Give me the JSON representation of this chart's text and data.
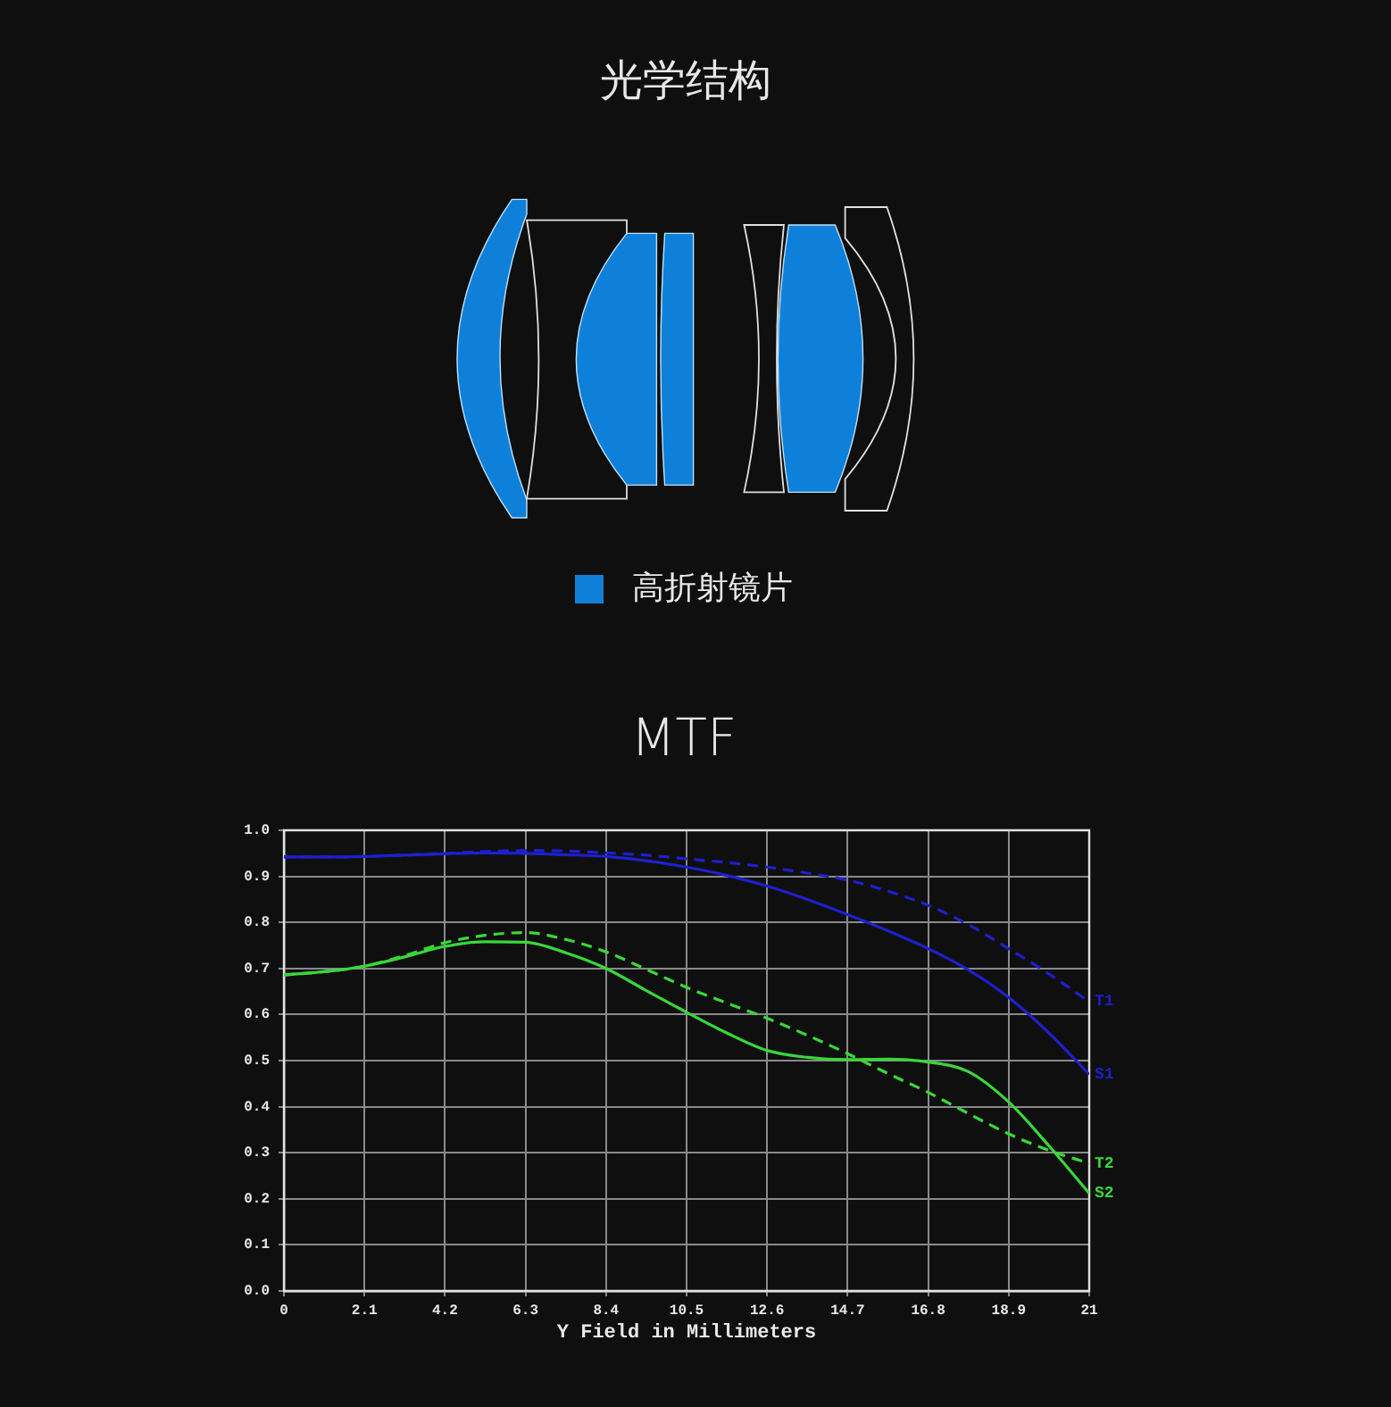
{
  "chart_data": [
    {
      "type": "other",
      "title": "光学结构",
      "annotations": [
        "高折射镜片"
      ]
    },
    {
      "type": "line",
      "title": "MTF",
      "xlabel": "Y Field in Millimeters",
      "x": [
        0,
        1.05,
        2.1,
        3.15,
        4.2,
        5.25,
        6.3,
        7.35,
        8.4,
        9.45,
        10.5,
        11.55,
        12.6,
        13.65,
        14.7,
        15.75,
        16.8,
        17.85,
        18.9,
        19.95,
        21
      ],
      "series": [
        {
          "name": "T1",
          "color": "#1f1fcf",
          "line_style": "dashed",
          "values": [
            0.942,
            0.942,
            0.943,
            0.946,
            0.95,
            0.954,
            0.956,
            0.955,
            0.951,
            0.946,
            0.938,
            0.93,
            0.92,
            0.907,
            0.892,
            0.868,
            0.837,
            0.795,
            0.743,
            0.688,
            0.628
          ]
        },
        {
          "name": "S1",
          "color": "#1f1fcf",
          "line_style": "solid",
          "values": [
            0.942,
            0.942,
            0.943,
            0.946,
            0.949,
            0.951,
            0.95,
            0.947,
            0.943,
            0.934,
            0.92,
            0.902,
            0.879,
            0.85,
            0.817,
            0.782,
            0.743,
            0.697,
            0.637,
            0.56,
            0.47
          ]
        },
        {
          "name": "T2",
          "color": "#38d838",
          "line_style": "dashed",
          "values": [
            0.686,
            0.693,
            0.705,
            0.728,
            0.756,
            0.772,
            0.778,
            0.763,
            0.736,
            0.698,
            0.659,
            0.625,
            0.592,
            0.555,
            0.515,
            0.472,
            0.431,
            0.385,
            0.341,
            0.305,
            0.277
          ]
        },
        {
          "name": "S2",
          "color": "#38d838",
          "line_style": "solid",
          "values": [
            0.686,
            0.693,
            0.705,
            0.725,
            0.748,
            0.758,
            0.757,
            0.734,
            0.7,
            0.652,
            0.605,
            0.56,
            0.522,
            0.507,
            0.502,
            0.503,
            0.497,
            0.476,
            0.41,
            0.315,
            0.212
          ]
        }
      ],
      "xlim": [
        0,
        21
      ],
      "xticks": [
        0,
        2.1,
        4.2,
        6.3,
        8.4,
        10.5,
        12.6,
        14.7,
        16.8,
        18.9,
        21
      ],
      "ylim": [
        0,
        1
      ],
      "yticks": [
        {
          "value": 0,
          "label": "0.0"
        },
        0.1,
        0.2,
        0.3,
        0.4,
        0.5,
        0.6,
        0.7,
        0.8,
        0.9,
        {
          "value": 1,
          "label": "1.0"
        }
      ],
      "grid": true,
      "legend": false,
      "marker": "none"
    }
  ]
}
